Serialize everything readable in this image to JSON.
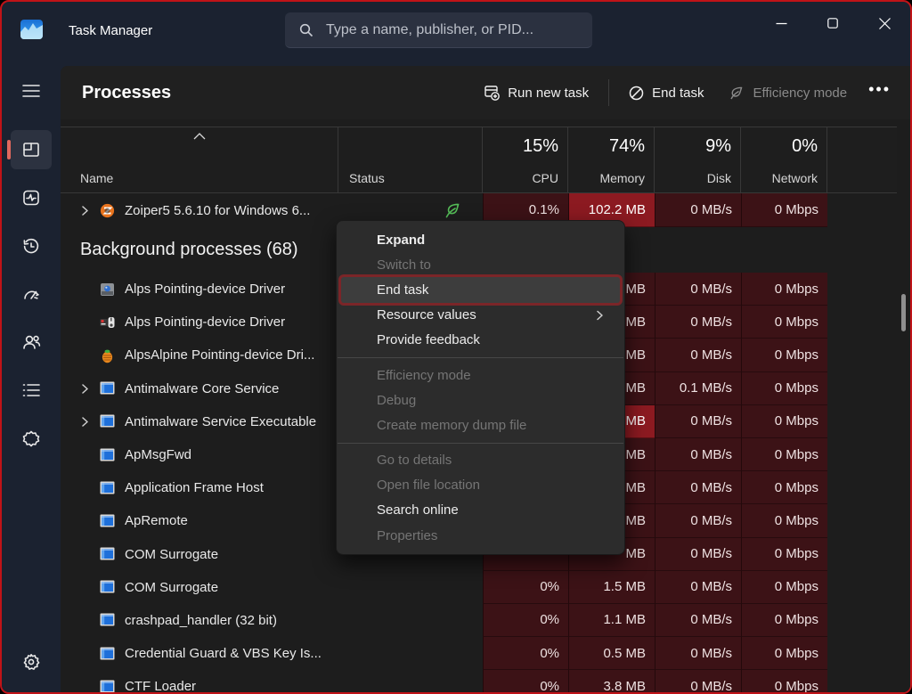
{
  "window": {
    "title": "Task Manager",
    "search_placeholder": "Type a name, publisher, or PID...",
    "controls": [
      "minimize",
      "maximize",
      "close"
    ]
  },
  "sidebar": {
    "items": [
      {
        "id": "menu",
        "icon": "hamburger-icon",
        "selected": false
      },
      {
        "id": "processes",
        "icon": "processes-icon",
        "selected": true
      },
      {
        "id": "performance",
        "icon": "performance-icon",
        "selected": false
      },
      {
        "id": "app-history",
        "icon": "app-history-icon",
        "selected": false
      },
      {
        "id": "startup-apps",
        "icon": "startup-apps-icon",
        "selected": false
      },
      {
        "id": "users",
        "icon": "users-icon",
        "selected": false
      },
      {
        "id": "details",
        "icon": "details-icon",
        "selected": false
      },
      {
        "id": "services",
        "icon": "services-icon",
        "selected": false
      }
    ],
    "bottom_item": {
      "id": "settings",
      "icon": "settings-gear-icon"
    }
  },
  "toolbar": {
    "title": "Processes",
    "run_new_task": "Run new task",
    "end_task": "End task",
    "efficiency_mode": "Efficiency mode",
    "more": "•••"
  },
  "table": {
    "header": {
      "name": "Name",
      "status": "Status",
      "cpu": {
        "pct": "15%",
        "label": "CPU"
      },
      "memory": {
        "pct": "74%",
        "label": "Memory"
      },
      "disk": {
        "pct": "9%",
        "label": "Disk"
      },
      "network": {
        "pct": "0%",
        "label": "Network"
      }
    },
    "app_row": {
      "name": "Zoiper5 5.6.10 for Windows 6...",
      "icon": "zoiper",
      "chevron": true,
      "status_leaf": true,
      "cpu": "0.1%",
      "memory": "102.2 MB",
      "mem_bright": true,
      "disk": "0 MB/s",
      "network": "0 Mbps"
    },
    "section_header": "Background processes (68)",
    "rows": [
      {
        "name": "Alps Pointing-device Driver",
        "icon": "alps-touchpad",
        "chevron": false,
        "cpu": "",
        "memory": "MB",
        "mem_bright": false,
        "disk": "0 MB/s",
        "network": "0 Mbps"
      },
      {
        "name": "Alps Pointing-device Driver",
        "icon": "alps-mouse",
        "chevron": false,
        "cpu": "",
        "memory": "MB",
        "mem_bright": false,
        "disk": "0 MB/s",
        "network": "0 Mbps"
      },
      {
        "name": "AlpsAlpine Pointing-device Dri...",
        "icon": "alpsalpine",
        "chevron": false,
        "cpu": "",
        "memory": "MB",
        "mem_bright": false,
        "disk": "0 MB/s",
        "network": "0 Mbps"
      },
      {
        "name": "Antimalware Core Service",
        "icon": "app-window",
        "chevron": true,
        "cpu": "",
        "memory": "MB",
        "mem_bright": false,
        "disk": "0.1 MB/s",
        "network": "0 Mbps"
      },
      {
        "name": "Antimalware Service Executable",
        "icon": "app-window",
        "chevron": true,
        "cpu": "",
        "memory": "MB",
        "mem_bright": true,
        "disk": "0 MB/s",
        "network": "0 Mbps"
      },
      {
        "name": "ApMsgFwd",
        "icon": "app-window",
        "chevron": false,
        "cpu": "",
        "memory": "MB",
        "mem_bright": false,
        "disk": "0 MB/s",
        "network": "0 Mbps"
      },
      {
        "name": "Application Frame Host",
        "icon": "app-window",
        "chevron": false,
        "cpu": "",
        "memory": "MB",
        "mem_bright": false,
        "disk": "0 MB/s",
        "network": "0 Mbps"
      },
      {
        "name": "ApRemote",
        "icon": "app-window",
        "chevron": false,
        "cpu": "",
        "memory": "MB",
        "mem_bright": false,
        "disk": "0 MB/s",
        "network": "0 Mbps"
      },
      {
        "name": "COM Surrogate",
        "icon": "app-window",
        "chevron": false,
        "cpu": "",
        "memory": "MB",
        "mem_bright": false,
        "disk": "0 MB/s",
        "network": "0 Mbps"
      },
      {
        "name": "COM Surrogate",
        "icon": "app-window",
        "chevron": false,
        "cpu": "0%",
        "memory": "1.5 MB",
        "mem_bright": false,
        "disk": "0 MB/s",
        "network": "0 Mbps"
      },
      {
        "name": "crashpad_handler (32 bit)",
        "icon": "app-window",
        "chevron": false,
        "cpu": "0%",
        "memory": "1.1 MB",
        "mem_bright": false,
        "disk": "0 MB/s",
        "network": "0 Mbps"
      },
      {
        "name": "Credential Guard & VBS Key Is...",
        "icon": "app-window",
        "chevron": false,
        "cpu": "0%",
        "memory": "0.5 MB",
        "mem_bright": false,
        "disk": "0 MB/s",
        "network": "0 Mbps"
      },
      {
        "name": "CTF Loader",
        "icon": "app-window",
        "chevron": false,
        "cpu": "0%",
        "memory": "3.8 MB",
        "mem_bright": false,
        "disk": "0 MB/s",
        "network": "0 Mbps"
      }
    ]
  },
  "context_menu": {
    "items": [
      {
        "label": "Expand",
        "enabled": true,
        "bold": true
      },
      {
        "label": "Switch to",
        "enabled": false
      },
      {
        "label": "End task",
        "enabled": true,
        "highlighted": true
      },
      {
        "label": "Resource values",
        "enabled": true,
        "submenu": true
      },
      {
        "label": "Provide feedback",
        "enabled": true
      },
      {
        "divider": true
      },
      {
        "label": "Efficiency mode",
        "enabled": false
      },
      {
        "label": "Debug",
        "enabled": false
      },
      {
        "label": "Create memory dump file",
        "enabled": false
      },
      {
        "divider": true
      },
      {
        "label": "Go to details",
        "enabled": false
      },
      {
        "label": "Open file location",
        "enabled": false
      },
      {
        "label": "Search online",
        "enabled": true
      },
      {
        "label": "Properties",
        "enabled": false
      }
    ]
  },
  "colors": {
    "window_border": "#c01318",
    "titlebar_bg": "#1b2230",
    "panel_bg": "#1d1d1d",
    "heat_cell": "#3c1216",
    "heat_cell_bright": "#8c1a21",
    "accent_selected": "#e0685e",
    "leaf_green": "#55bd58",
    "menu_bg": "#2c2c2c",
    "menu_highlight_border": "#7b2528"
  }
}
